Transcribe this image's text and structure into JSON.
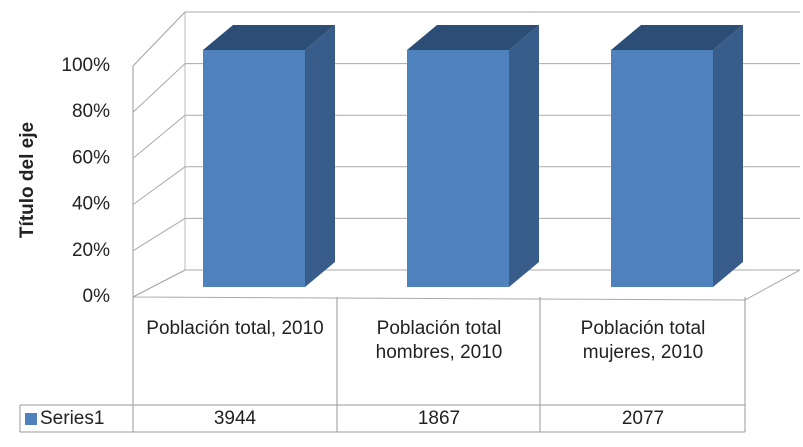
{
  "chart_data": {
    "type": "bar3d",
    "stack": "percent",
    "y_axis_label": "Título del eje",
    "categories": [
      "Población total, 2010",
      "Población total hombres, 2010",
      "Población total mujeres, 2010"
    ],
    "series": [
      {
        "name": "Series1",
        "color": "#4f81bd",
        "values": [
          3944,
          1867,
          2077
        ]
      }
    ],
    "ylim": [
      0,
      100
    ],
    "yticks": [
      {
        "value": 0,
        "label": "0%"
      },
      {
        "value": 20,
        "label": "20%"
      },
      {
        "value": 40,
        "label": "40%"
      },
      {
        "value": 60,
        "label": "60%"
      },
      {
        "value": 80,
        "label": "80%"
      },
      {
        "value": 100,
        "label": "100%"
      }
    ],
    "grid": true,
    "data_table": true
  }
}
